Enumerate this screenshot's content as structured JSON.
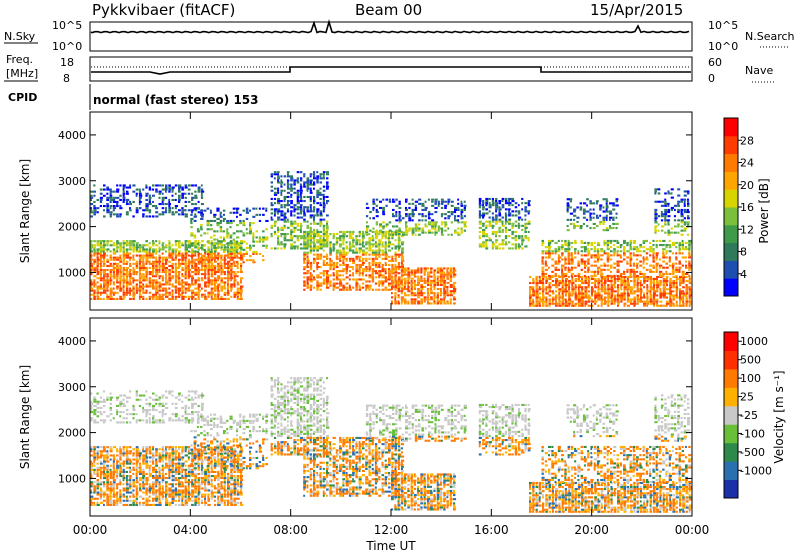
{
  "header": {
    "station": "Pykkvibaer (fitACF)",
    "beam": "Beam 00",
    "date": "15/Apr/2015"
  },
  "panels": {
    "nsky_label": "N.Sky",
    "nsky_ticks": [
      "10^5",
      "10^0"
    ],
    "nsearch_label": "N.Search",
    "nsearch_ticks": [
      "10^5",
      "10^0"
    ],
    "freq_label": "Freq.",
    "freq_unit": "[MHz]",
    "freq_ticks": [
      "18",
      "8"
    ],
    "nave_label": "Nave",
    "nave_ticks": [
      "60",
      "0"
    ],
    "cpid_label": "CPID",
    "cpid_text": "normal (fast stereo) 153"
  },
  "chart_data": [
    {
      "type": "heatmap",
      "ylabel": "Slant Range [km]",
      "yticks": [
        "4000",
        "3000",
        "2000",
        "1000"
      ],
      "ylim": [
        180,
        4500
      ],
      "colorbar": {
        "label": "Power [dB]",
        "ticks": [
          "28",
          "24",
          "20",
          "16",
          "12",
          "8",
          "4"
        ],
        "colors": [
          "#0000ff",
          "#1e4fb0",
          "#2e7a5a",
          "#3f9a4a",
          "#7cbf3a",
          "#d7d400",
          "#ffa500",
          "#ff7a00",
          "#ff3c00",
          "#ff0000"
        ]
      }
    },
    {
      "type": "heatmap",
      "ylabel": "Slant Range [km]",
      "yticks": [
        "4000",
        "3000",
        "2000",
        "1000"
      ],
      "ylim": [
        180,
        4500
      ],
      "colorbar": {
        "label": "Velocity [m s⁻¹]",
        "ticks": [
          "1000",
          "500",
          "100",
          "25",
          "-25",
          "-100",
          "-500",
          "-1000"
        ],
        "colors": [
          "#1a2fa8",
          "#2a6fb0",
          "#2e8a4a",
          "#6abf3a",
          "#c8c8c8",
          "#ffb000",
          "#ff7a00",
          "#ff3000",
          "#ff0000"
        ]
      }
    }
  ],
  "time_axis": {
    "label": "Time UT",
    "ticks": [
      "00:00",
      "04:00",
      "08:00",
      "12:00",
      "16:00",
      "20:00",
      "00:00"
    ]
  }
}
